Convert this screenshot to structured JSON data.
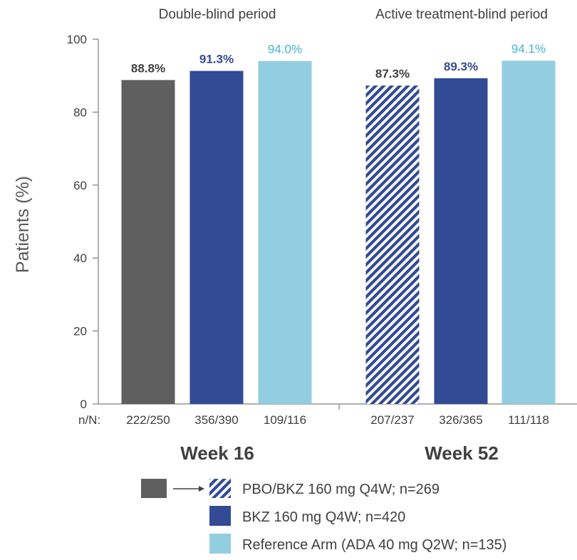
{
  "chart_data": {
    "type": "bar",
    "ylabel": "Patients (%)",
    "ylim": [
      0,
      100
    ],
    "yticks": [
      0,
      20,
      40,
      60,
      80,
      100
    ],
    "grid": false,
    "n_prefix": "n/N:",
    "groups": [
      {
        "label": "Week 16",
        "period": "Double-blind period",
        "bars": [
          {
            "series": "Placebo",
            "value": 88.8,
            "label": "88.8%",
            "n": "222/250",
            "color": "#5f5f5f",
            "label_color": "#404040",
            "pattern": false
          },
          {
            "series": "BKZ 160 mg Q4W; n=420",
            "value": 91.3,
            "label": "91.3%",
            "n": "356/390",
            "color": "#334a94",
            "label_color": "#334a94",
            "pattern": false
          },
          {
            "series": "Reference Arm (ADA 40 mg Q2W; n=135)",
            "value": 94.0,
            "label": "94.0%",
            "n": "109/116",
            "color": "#93cde0",
            "label_color": "#41b3dc",
            "pattern": false
          }
        ]
      },
      {
        "label": "Week 52",
        "period": "Active treatment-blind period",
        "bars": [
          {
            "series": "PBO/BKZ 160 mg Q4W; n=269",
            "value": 87.3,
            "label": "87.3%",
            "n": "207/237",
            "color": "#334a94",
            "label_color": "#404040",
            "pattern": true
          },
          {
            "series": "BKZ 160 mg Q4W; n=420",
            "value": 89.3,
            "label": "89.3%",
            "n": "326/365",
            "color": "#334a94",
            "label_color": "#334a94",
            "pattern": false
          },
          {
            "series": "Reference Arm (ADA 40 mg Q2W; n=135)",
            "value": 94.1,
            "label": "94.1%",
            "n": "111/118",
            "color": "#93cde0",
            "label_color": "#41b3dc",
            "pattern": false
          }
        ]
      }
    ],
    "legend": [
      {
        "label": "PBO/BKZ 160 mg Q4W; n=269",
        "color": "#334a94",
        "pattern": true,
        "from_color": "#5f5f5f"
      },
      {
        "label": "BKZ 160 mg Q4W; n=420",
        "color": "#334a94",
        "pattern": false
      },
      {
        "label": "Reference Arm (ADA 40 mg Q2W; n=135)",
        "color": "#93cde0",
        "pattern": false
      }
    ]
  }
}
